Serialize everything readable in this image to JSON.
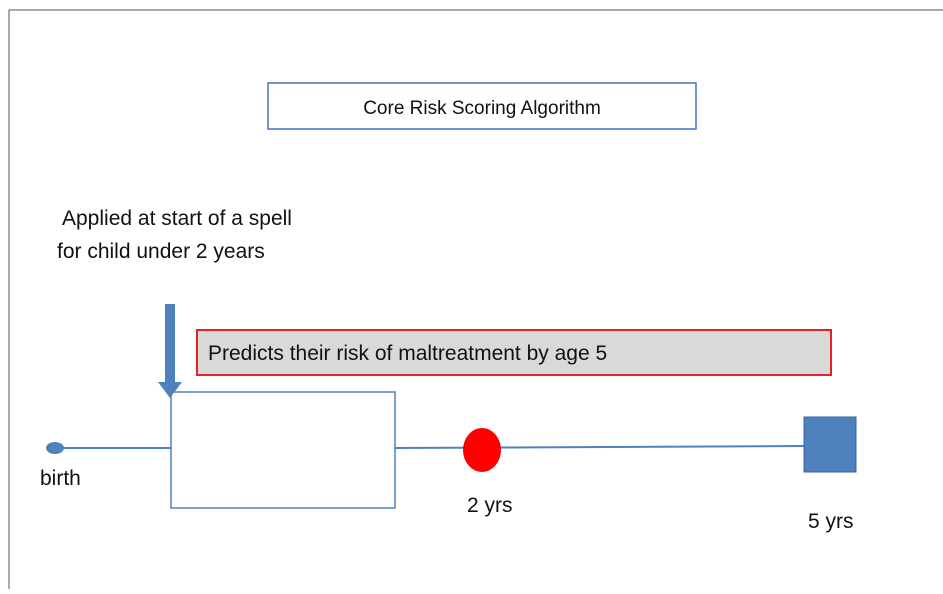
{
  "title": "Core Risk Scoring Algorithm",
  "applied_note": [
    "Applied at start of a spell",
    "for child under 2 years"
  ],
  "prediction": "Predicts their risk of maltreatment by age 5",
  "timeline": {
    "start": "birth",
    "middle": "2 yrs",
    "end": "5 yrs"
  }
}
